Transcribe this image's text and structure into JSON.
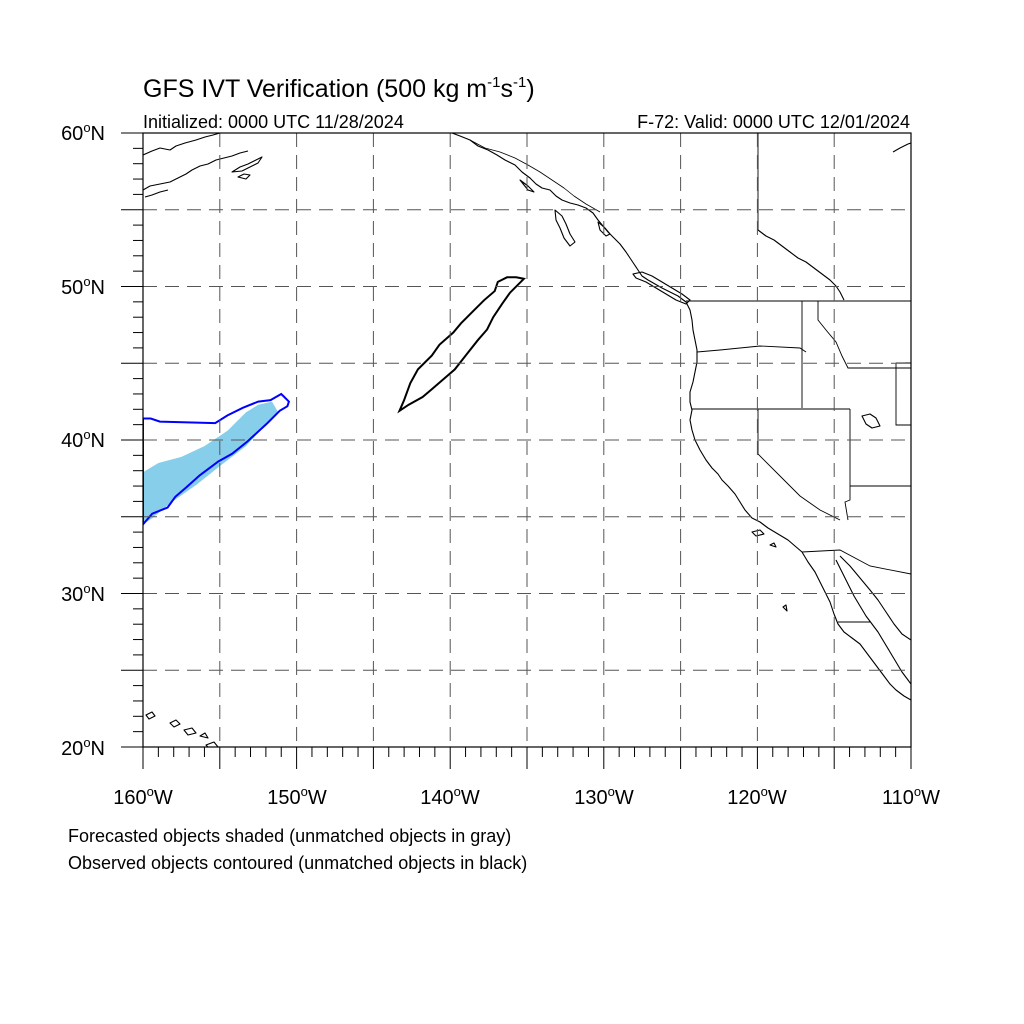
{
  "title": {
    "main": "GFS IVT Verification (500 kg m",
    "sup1": "-1",
    "mid": "s",
    "sup2": "-1",
    "end": ")"
  },
  "initialized": "Initialized: 0000 UTC 11/28/2024",
  "valid": "F-72: Valid: 0000 UTC 12/01/2024",
  "lat_labels": [
    {
      "deg": "60",
      "suffix": "N"
    },
    {
      "deg": "50",
      "suffix": "N"
    },
    {
      "deg": "40",
      "suffix": "N"
    },
    {
      "deg": "30",
      "suffix": "N"
    },
    {
      "deg": "20",
      "suffix": "N"
    }
  ],
  "lon_labels": [
    {
      "deg": "160",
      "suffix": "W"
    },
    {
      "deg": "150",
      "suffix": "W"
    },
    {
      "deg": "140",
      "suffix": "W"
    },
    {
      "deg": "130",
      "suffix": "W"
    },
    {
      "deg": "120",
      "suffix": "W"
    },
    {
      "deg": "110",
      "suffix": "W"
    }
  ],
  "footnote": {
    "line1": "Forecasted objects shaded (unmatched objects in gray)",
    "line2": "Observed objects contoured (unmatched objects in black)"
  },
  "map": {
    "lat_range": [
      20,
      60
    ],
    "lon_range": [
      -160,
      -110
    ],
    "grid_lats": [
      25,
      30,
      35,
      40,
      45,
      50,
      55
    ],
    "grid_lons": [
      -155,
      -150,
      -145,
      -140,
      -135,
      -130,
      -125,
      -120,
      -115
    ],
    "colors": {
      "forecast_shaded": "#87CEEB",
      "matched_observed_contour": "#0000FF",
      "unmatched_observed_contour": "#000000"
    },
    "forecast_object": [
      [
        -160.0,
        37.9
      ],
      [
        -159.0,
        38.5
      ],
      [
        -157.5,
        38.9
      ],
      [
        -156.0,
        39.6
      ],
      [
        -154.5,
        40.6
      ],
      [
        -153.3,
        41.8
      ],
      [
        -152.5,
        42.3
      ],
      [
        -151.6,
        42.5
      ],
      [
        -151.2,
        41.8
      ],
      [
        -152.0,
        41.0
      ],
      [
        -153.3,
        39.6
      ],
      [
        -155.0,
        38.3
      ],
      [
        -156.5,
        37.1
      ],
      [
        -158.2,
        35.9
      ],
      [
        -159.4,
        34.9
      ],
      [
        -160.0,
        34.5
      ]
    ],
    "observed_matched_object": [
      [
        -160.0,
        41.4
      ],
      [
        -159.5,
        41.4
      ],
      [
        -158.9,
        41.2
      ],
      [
        -155.3,
        41.1
      ],
      [
        -154.5,
        41.6
      ],
      [
        -153.5,
        42.1
      ],
      [
        -152.5,
        42.5
      ],
      [
        -151.7,
        42.6
      ],
      [
        -151.0,
        43.0
      ],
      [
        -150.8,
        42.8
      ],
      [
        -150.5,
        42.5
      ],
      [
        -150.6,
        42.2
      ],
      [
        -151.1,
        41.9
      ],
      [
        -151.9,
        41.1
      ],
      [
        -153.2,
        39.9
      ],
      [
        -154.2,
        39.1
      ],
      [
        -155.1,
        38.6
      ],
      [
        -156.3,
        37.7
      ],
      [
        -157.2,
        36.9
      ],
      [
        -157.9,
        36.3
      ],
      [
        -158.4,
        35.6
      ],
      [
        -159.4,
        35.2
      ],
      [
        -160.0,
        34.5
      ]
    ],
    "observed_unmatched_object": [
      [
        -143.3,
        41.9
      ],
      [
        -143.0,
        42.6
      ],
      [
        -142.6,
        43.7
      ],
      [
        -142.1,
        44.6
      ],
      [
        -141.2,
        45.5
      ],
      [
        -140.7,
        46.2
      ],
      [
        -139.8,
        47.0
      ],
      [
        -139.3,
        47.6
      ],
      [
        -138.5,
        48.4
      ],
      [
        -137.8,
        49.1
      ],
      [
        -137.1,
        49.7
      ],
      [
        -136.9,
        50.3
      ],
      [
        -136.3,
        50.6
      ],
      [
        -135.7,
        50.6
      ],
      [
        -135.2,
        50.5
      ],
      [
        -136.1,
        49.6
      ],
      [
        -136.6,
        48.9
      ],
      [
        -137.2,
        48.0
      ],
      [
        -137.6,
        47.2
      ],
      [
        -138.2,
        46.5
      ],
      [
        -139.0,
        45.5
      ],
      [
        -139.7,
        44.6
      ],
      [
        -140.4,
        44.0
      ],
      [
        -141.2,
        43.3
      ],
      [
        -141.8,
        42.8
      ],
      [
        -142.7,
        42.3
      ],
      [
        -143.3,
        41.9
      ]
    ]
  }
}
